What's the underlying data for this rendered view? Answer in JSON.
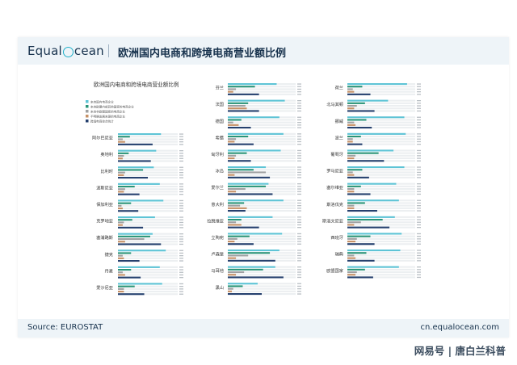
{
  "header": {
    "logo_prefix": "Equal",
    "logo_suffix": "cean",
    "title": "欧洲国内电商和跨境电商营业额比例"
  },
  "footer": {
    "source": "Source: EUROSTAT",
    "site": "cn.equalocean.com"
  },
  "watermark": {
    "text": "网易号 | 唐白兰科普"
  },
  "colors": {
    "brand_navy": "#17324d",
    "brand_cyan": "#21b0c9",
    "series": [
      "#5ec4d6",
      "#2a9478",
      "#9ea0a2",
      "#c69166",
      "#25406e"
    ]
  },
  "chart_data": {
    "type": "bar",
    "orientation": "horizontal",
    "title": "欧洲国内电商和跨境电商营业额比例",
    "legend_position": "top-left",
    "value_range": [
      0,
      100
    ],
    "value_labels_legible": false,
    "series": [
      {
        "name": "来自国内电商企业"
      },
      {
        "name": "来自欧盟内部其他国家的电商企业"
      },
      {
        "name": "来自非欧盟国家的电商企业"
      },
      {
        "name": "不明确发展来源的电商企业"
      },
      {
        "name": "跨境电商综合统计"
      }
    ],
    "groups": [
      {
        "label": "阿尔巴尼亚",
        "values": [
          72,
          20,
          8,
          12,
          58
        ]
      },
      {
        "label": "奥地利",
        "values": [
          64,
          18,
          10,
          8,
          55
        ]
      },
      {
        "label": "比利时",
        "values": [
          60,
          42,
          12,
          10,
          50
        ]
      },
      {
        "label": "波斯尼亚",
        "values": [
          70,
          28,
          12,
          10,
          36
        ]
      },
      {
        "label": "保加利亚",
        "values": [
          76,
          22,
          6,
          8,
          34
        ]
      },
      {
        "label": "克罗地亚",
        "values": [
          62,
          24,
          10,
          8,
          42
        ]
      },
      {
        "label": "塞浦路斯",
        "values": [
          58,
          54,
          44,
          12,
          72
        ]
      },
      {
        "label": "捷克",
        "values": [
          80,
          22,
          8,
          10,
          36
        ]
      },
      {
        "label": "丹麦",
        "values": [
          70,
          22,
          8,
          12,
          38
        ]
      },
      {
        "label": "爱沙尼亚",
        "values": [
          74,
          28,
          10,
          10,
          44
        ]
      },
      {
        "label": "芬兰",
        "values": [
          72,
          40,
          12,
          8,
          46
        ]
      },
      {
        "label": "法国",
        "values": [
          84,
          30,
          26,
          28,
          46
        ]
      },
      {
        "label": "德国",
        "values": [
          76,
          20,
          8,
          16,
          34
        ]
      },
      {
        "label": "希腊",
        "values": [
          82,
          30,
          12,
          10,
          38
        ]
      },
      {
        "label": "匈牙利",
        "values": [
          78,
          28,
          12,
          10,
          34
        ]
      },
      {
        "label": "冰岛",
        "values": [
          56,
          38,
          56,
          10,
          62
        ]
      },
      {
        "label": "爱尔兰",
        "values": [
          60,
          56,
          26,
          12,
          66
        ]
      },
      {
        "label": "意大利",
        "values": [
          82,
          24,
          18,
          28,
          26
        ]
      },
      {
        "label": "拉脱维亚",
        "values": [
          66,
          20,
          12,
          20,
          46
        ]
      },
      {
        "label": "立陶宛",
        "values": [
          80,
          32,
          14,
          10,
          38
        ]
      },
      {
        "label": "卢森堡",
        "values": [
          76,
          62,
          30,
          12,
          70
        ]
      },
      {
        "label": "马耳他",
        "values": [
          70,
          52,
          24,
          12,
          82
        ]
      },
      {
        "label": "黑山",
        "values": [
          44,
          22,
          8,
          6,
          50
        ]
      },
      {
        "label": "荷兰",
        "values": [
          88,
          22,
          8,
          10,
          34
        ]
      },
      {
        "label": "北马其顿",
        "values": [
          60,
          26,
          14,
          10,
          40
        ]
      },
      {
        "label": "挪威",
        "values": [
          84,
          28,
          10,
          12,
          36
        ]
      },
      {
        "label": "波兰",
        "values": [
          86,
          20,
          8,
          8,
          22
        ]
      },
      {
        "label": "葡萄牙",
        "values": [
          68,
          46,
          12,
          10,
          54
        ]
      },
      {
        "label": "罗马尼亚",
        "values": [
          84,
          22,
          8,
          10,
          32
        ]
      },
      {
        "label": "塞尔维亚",
        "values": [
          72,
          20,
          10,
          10,
          34
        ]
      },
      {
        "label": "斯洛伐克",
        "values": [
          76,
          26,
          10,
          10,
          44
        ]
      },
      {
        "label": "斯洛文尼亚",
        "values": [
          70,
          52,
          20,
          10,
          62
        ]
      },
      {
        "label": "西班牙",
        "values": [
          80,
          34,
          14,
          12,
          40
        ]
      },
      {
        "label": "瑞典",
        "values": [
          78,
          28,
          10,
          12,
          40
        ]
      },
      {
        "label": "欧盟国家",
        "values": [
          76,
          26,
          14,
          12,
          38
        ]
      }
    ]
  }
}
